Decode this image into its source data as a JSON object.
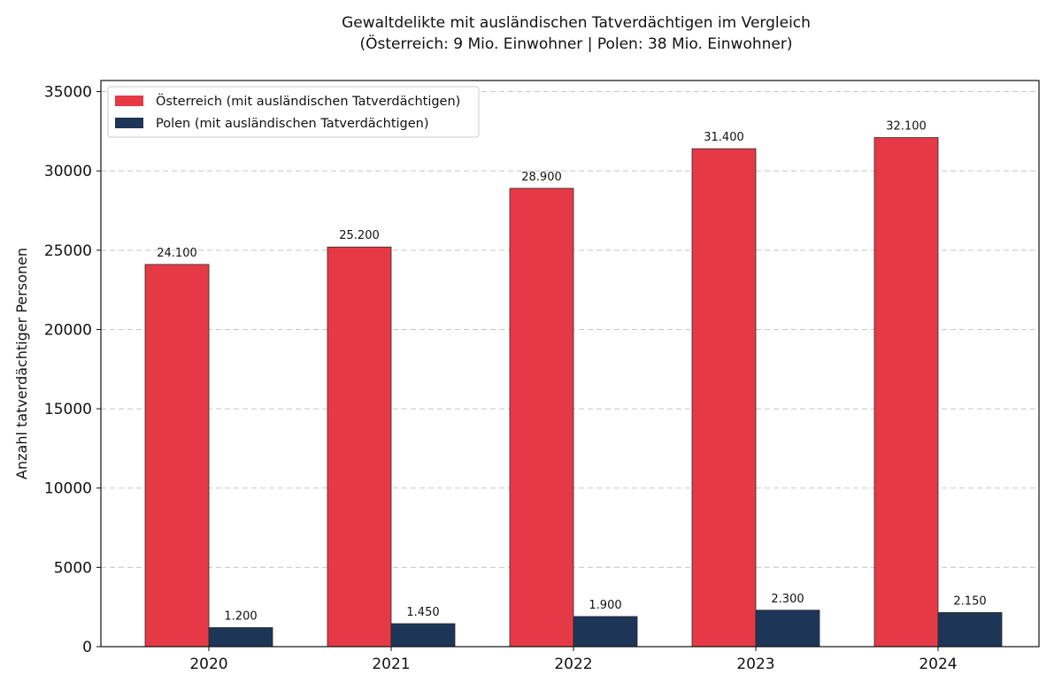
{
  "chart_data": {
    "type": "bar",
    "title": "Gewaltdelikte mit ausländischen Tatverdächtigen im Vergleich",
    "subtitle": "(Österreich: 9 Mio. Einwohner | Polen: 38 Mio. Einwohner)",
    "xlabel": "",
    "ylabel": "Anzahl tatverdächtiger Personen",
    "categories": [
      "2020",
      "2021",
      "2022",
      "2023",
      "2024"
    ],
    "series": [
      {
        "name": "Österreich (mit ausländischen Tatverdächtigen)",
        "color": "#e63946",
        "values": [
          24100,
          25200,
          28900,
          31400,
          32100
        ],
        "labels": [
          "24.100",
          "25.200",
          "28.900",
          "31.400",
          "32.100"
        ]
      },
      {
        "name": "Polen (mit ausländischen Tatverdächtigen)",
        "color": "#1d3557",
        "values": [
          1200,
          1450,
          1900,
          2300,
          2150
        ],
        "labels": [
          "1.200",
          "1.450",
          "1.900",
          "2.300",
          "2.150"
        ]
      }
    ],
    "ylim": [
      0,
      35700
    ],
    "yticks": [
      0,
      5000,
      10000,
      15000,
      20000,
      25000,
      30000,
      35000
    ],
    "grid": "horizontal-dashed",
    "legend": "top-left"
  }
}
